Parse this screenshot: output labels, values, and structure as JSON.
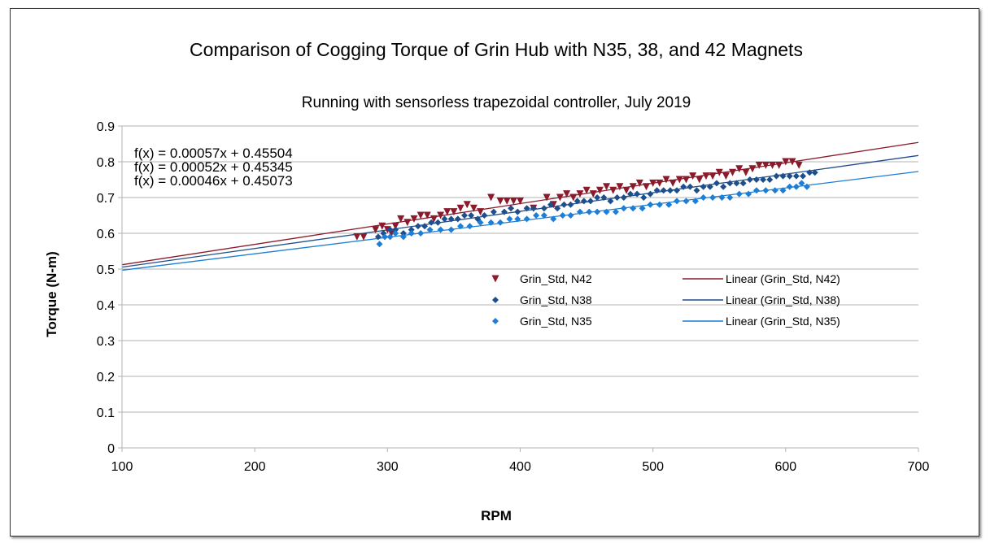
{
  "chart_data": {
    "type": "scatter",
    "title": "Comparison of Cogging Torque of Grin Hub with N35, 38, and 42 Magnets",
    "subtitle": "Running with sensorless trapezoidal controller,  July 2019",
    "xlabel": "RPM",
    "ylabel": "Torque (N-m)",
    "xlim": [
      100,
      700
    ],
    "ylim": [
      0,
      0.9
    ],
    "xticks": [
      100,
      200,
      300,
      400,
      500,
      600,
      700
    ],
    "yticks": [
      0,
      0.1,
      0.2,
      0.3,
      0.4,
      0.5,
      0.6,
      0.7,
      0.8,
      0.9
    ],
    "grid": true,
    "legend_position": "center-right",
    "series": [
      {
        "name": "Grin_Std, N42",
        "marker": "triangle-down",
        "color": "#8b1a2b",
        "trend": {
          "label": "Linear (Grin_Std, N42)",
          "slope": 0.00057,
          "intercept": 0.45504,
          "equation": "f(x) = 0.00057x + 0.45504"
        },
        "x": [
          277,
          282,
          291,
          296,
          300,
          303,
          306,
          310,
          315,
          320,
          325,
          330,
          335,
          340,
          345,
          350,
          355,
          360,
          365,
          370,
          378,
          385,
          390,
          395,
          400,
          410,
          420,
          425,
          430,
          435,
          440,
          445,
          450,
          455,
          460,
          465,
          470,
          475,
          480,
          485,
          490,
          495,
          500,
          505,
          510,
          515,
          520,
          525,
          530,
          535,
          540,
          545,
          550,
          555,
          560,
          565,
          570,
          575,
          580,
          585,
          590,
          595,
          600,
          605,
          610
        ],
        "y": [
          0.59,
          0.59,
          0.61,
          0.62,
          0.61,
          0.6,
          0.62,
          0.64,
          0.63,
          0.64,
          0.65,
          0.65,
          0.64,
          0.65,
          0.66,
          0.66,
          0.67,
          0.68,
          0.67,
          0.66,
          0.7,
          0.69,
          0.69,
          0.69,
          0.69,
          0.67,
          0.7,
          0.68,
          0.7,
          0.71,
          0.7,
          0.71,
          0.72,
          0.71,
          0.72,
          0.73,
          0.72,
          0.73,
          0.72,
          0.73,
          0.74,
          0.73,
          0.74,
          0.74,
          0.75,
          0.74,
          0.75,
          0.75,
          0.76,
          0.75,
          0.76,
          0.76,
          0.77,
          0.76,
          0.77,
          0.78,
          0.77,
          0.78,
          0.79,
          0.79,
          0.79,
          0.79,
          0.8,
          0.8,
          0.79
        ]
      },
      {
        "name": "Grin_Std, N38",
        "marker": "diamond",
        "color": "#1f4e8c",
        "trend": {
          "label": "Linear (Grin_Std, N38)",
          "slope": 0.00052,
          "intercept": 0.45345,
          "equation": "f(x) = 0.00052x + 0.45345"
        },
        "x": [
          293,
          297,
          302,
          306,
          312,
          318,
          323,
          328,
          333,
          338,
          343,
          348,
          353,
          358,
          363,
          368,
          373,
          380,
          388,
          393,
          398,
          405,
          410,
          418,
          423,
          428,
          433,
          438,
          443,
          448,
          453,
          458,
          463,
          468,
          473,
          478,
          483,
          488,
          493,
          498,
          503,
          508,
          513,
          518,
          523,
          528,
          533,
          538,
          543,
          548,
          553,
          558,
          563,
          568,
          573,
          578,
          583,
          588,
          593,
          598,
          603,
          608,
          613,
          618,
          622
        ],
        "y": [
          0.59,
          0.6,
          0.61,
          0.61,
          0.6,
          0.61,
          0.62,
          0.62,
          0.63,
          0.63,
          0.64,
          0.64,
          0.64,
          0.65,
          0.65,
          0.64,
          0.65,
          0.66,
          0.66,
          0.67,
          0.66,
          0.67,
          0.67,
          0.67,
          0.68,
          0.67,
          0.68,
          0.68,
          0.69,
          0.69,
          0.69,
          0.7,
          0.7,
          0.69,
          0.7,
          0.7,
          0.71,
          0.71,
          0.7,
          0.71,
          0.72,
          0.72,
          0.72,
          0.72,
          0.73,
          0.73,
          0.72,
          0.73,
          0.73,
          0.74,
          0.73,
          0.74,
          0.74,
          0.74,
          0.75,
          0.75,
          0.75,
          0.75,
          0.76,
          0.76,
          0.76,
          0.76,
          0.76,
          0.77,
          0.77
        ]
      },
      {
        "name": "Grin_Std, N35",
        "marker": "diamond",
        "color": "#1c7ed6",
        "trend": {
          "label": "Linear (Grin_Std, N35)",
          "slope": 0.00046,
          "intercept": 0.45073,
          "equation": "f(x) = 0.00046x + 0.45073"
        },
        "x": [
          294,
          298,
          302,
          306,
          312,
          318,
          325,
          332,
          340,
          348,
          355,
          362,
          370,
          378,
          385,
          392,
          398,
          405,
          412,
          418,
          425,
          432,
          438,
          445,
          452,
          458,
          465,
          472,
          478,
          485,
          492,
          498,
          505,
          512,
          518,
          525,
          532,
          538,
          545,
          552,
          558,
          565,
          572,
          578,
          585,
          592,
          598,
          603,
          608,
          612,
          616
        ],
        "y": [
          0.57,
          0.59,
          0.59,
          0.6,
          0.59,
          0.6,
          0.6,
          0.61,
          0.61,
          0.61,
          0.62,
          0.62,
          0.63,
          0.63,
          0.63,
          0.64,
          0.64,
          0.64,
          0.65,
          0.65,
          0.64,
          0.65,
          0.65,
          0.66,
          0.66,
          0.66,
          0.66,
          0.66,
          0.67,
          0.67,
          0.67,
          0.68,
          0.68,
          0.68,
          0.69,
          0.69,
          0.69,
          0.7,
          0.7,
          0.7,
          0.7,
          0.71,
          0.71,
          0.72,
          0.72,
          0.72,
          0.72,
          0.73,
          0.73,
          0.74,
          0.73
        ]
      }
    ]
  }
}
